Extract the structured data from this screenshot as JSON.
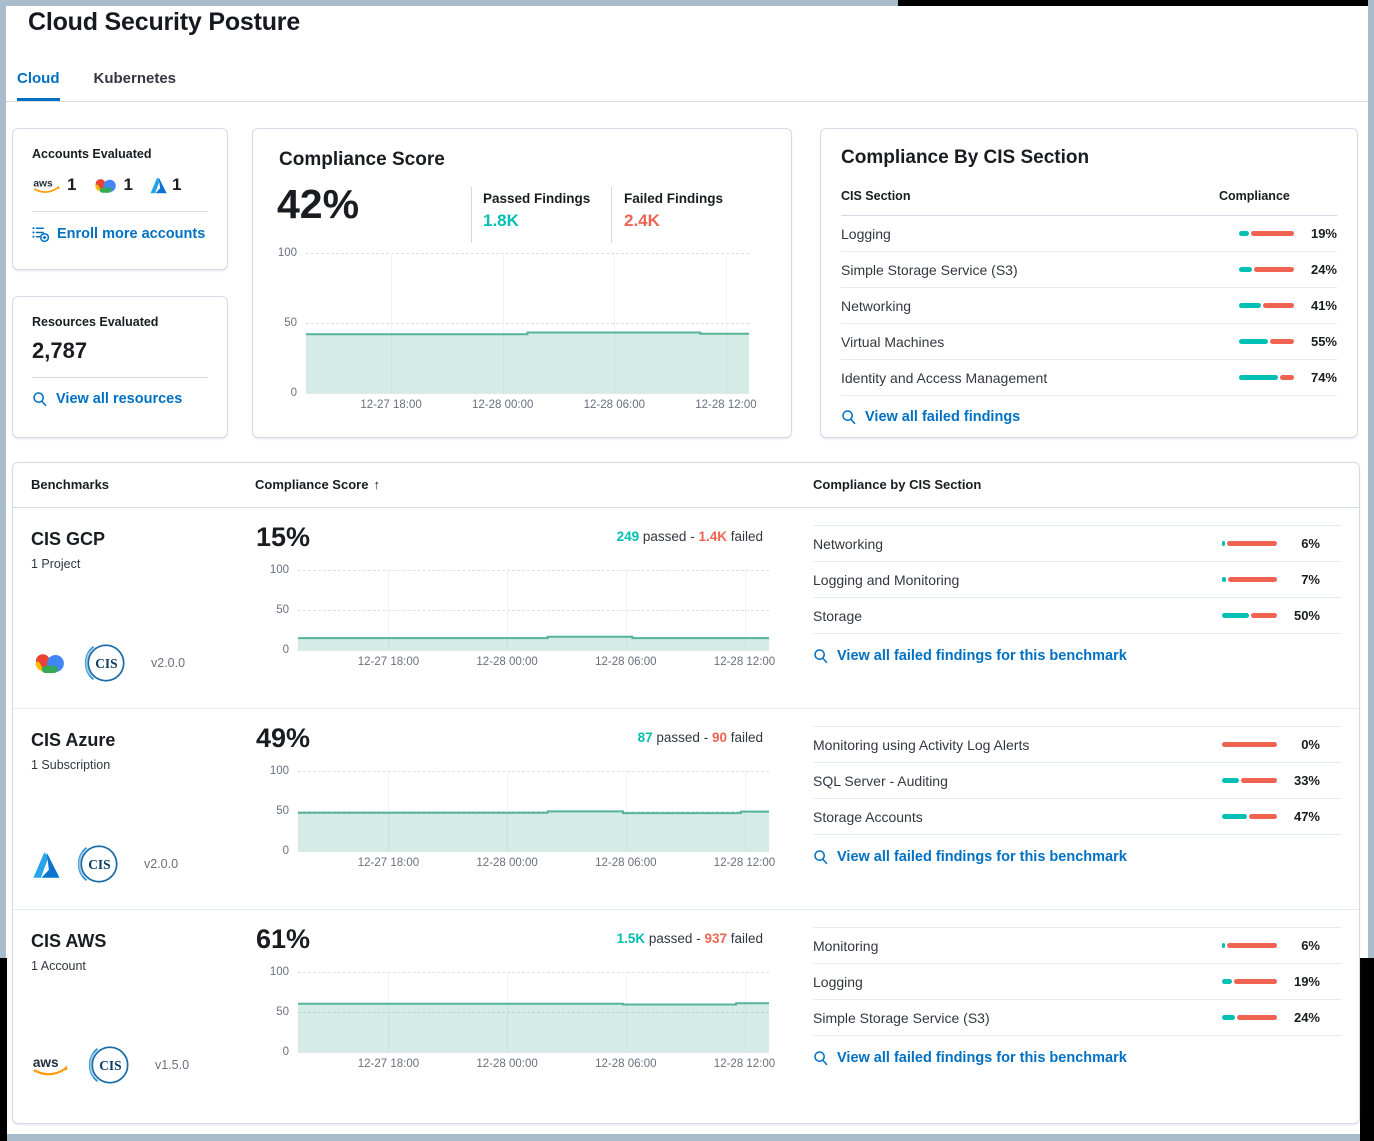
{
  "page": {
    "title": "Cloud Security Posture"
  },
  "tabs": [
    {
      "label": "Cloud",
      "active": true
    },
    {
      "label": "Kubernetes",
      "active": false
    }
  ],
  "accounts_card": {
    "title": "Accounts Evaluated",
    "providers": [
      {
        "icon": "aws",
        "count": "1"
      },
      {
        "icon": "gcp",
        "count": "1"
      },
      {
        "icon": "azure",
        "count": "1"
      }
    ],
    "link_label": "Enroll more accounts",
    "link_icon": "enroll"
  },
  "resources_card": {
    "title": "Resources Evaluated",
    "count": "2,787",
    "link_label": "View all resources",
    "link_icon": "search"
  },
  "score_card": {
    "title": "Compliance Score",
    "score": "42%",
    "passed_label": "Passed Findings",
    "passed_value": "1.8K",
    "failed_label": "Failed Findings",
    "failed_value": "2.4K"
  },
  "cis_card": {
    "title": "Compliance By CIS Section",
    "col_section": "CIS Section",
    "col_compliance": "Compliance",
    "rows": [
      {
        "name": "Logging",
        "pct": 19
      },
      {
        "name": "Simple Storage Service (S3)",
        "pct": 24
      },
      {
        "name": "Networking",
        "pct": 41
      },
      {
        "name": "Virtual Machines",
        "pct": 55
      },
      {
        "name": "Identity and Access Management",
        "pct": 74
      }
    ],
    "link_label": "View all failed findings",
    "link_icon": "search"
  },
  "benchmarks": {
    "col_benchmarks": "Benchmarks",
    "col_score": "Compliance Score",
    "sort_indicator": "↑",
    "col_sections": "Compliance by CIS Section",
    "passed_word": "passed",
    "failed_word": "failed",
    "separator": "-",
    "link_label": "View all failed findings for this benchmark",
    "link_icon": "search",
    "rows": [
      {
        "name": "CIS GCP",
        "subtitle": "1 Project",
        "provider_icon": "gcp",
        "cis_icon": "cis",
        "version": "v2.0.0",
        "score": "15%",
        "passed": "249",
        "failed": "1.4K",
        "sections": [
          {
            "name": "Networking",
            "pct": 6
          },
          {
            "name": "Logging and Monitoring",
            "pct": 7
          },
          {
            "name": "Storage",
            "pct": 50
          }
        ]
      },
      {
        "name": "CIS Azure",
        "subtitle": "1 Subscription",
        "provider_icon": "azure",
        "cis_icon": "cis",
        "version": "v2.0.0",
        "score": "49%",
        "passed": "87",
        "failed": "90",
        "sections": [
          {
            "name": "Monitoring using Activity Log Alerts",
            "pct": 0
          },
          {
            "name": "SQL Server - Auditing",
            "pct": 33
          },
          {
            "name": "Storage Accounts",
            "pct": 47
          }
        ]
      },
      {
        "name": "CIS AWS",
        "subtitle": "1 Account",
        "provider_icon": "aws",
        "cis_icon": "cis",
        "version": "v1.5.0",
        "score": "61%",
        "passed": "1.5K",
        "failed": "937",
        "sections": [
          {
            "name": "Monitoring",
            "pct": 6
          },
          {
            "name": "Logging",
            "pct": 19
          },
          {
            "name": "Simple Storage Service (S3)",
            "pct": 24
          }
        ]
      }
    ]
  },
  "chart_data": [
    {
      "type": "area",
      "name": "Overall compliance score trend",
      "ylim": [
        0,
        100
      ],
      "y_ticks": [
        100,
        50,
        0
      ],
      "x_ticks": [
        "12-27 18:00",
        "12-28 00:00",
        "12-28 06:00",
        "12-28 12:00"
      ],
      "x_tick_pcts": [
        19.2,
        44.4,
        69.6,
        94.8
      ],
      "points": [
        [
          0,
          42
        ],
        [
          50,
          42
        ],
        [
          50,
          43.2
        ],
        [
          89,
          43.2
        ],
        [
          89,
          42.3
        ],
        [
          100,
          42.3
        ]
      ]
    },
    {
      "type": "area",
      "name": "CIS GCP compliance score trend",
      "ylim": [
        0,
        100
      ],
      "y_ticks": [
        100,
        50,
        0
      ],
      "x_ticks": [
        "12-27 18:00",
        "12-28 00:00",
        "12-28 06:00",
        "12-28 12:00"
      ],
      "x_tick_pcts": [
        19.2,
        44.4,
        69.6,
        94.8
      ],
      "points": [
        [
          0,
          14.8
        ],
        [
          53,
          14.8
        ],
        [
          53,
          16.5
        ],
        [
          71,
          16.5
        ],
        [
          71,
          14.8
        ],
        [
          100,
          14.8
        ]
      ]
    },
    {
      "type": "area",
      "name": "CIS Azure compliance score trend",
      "ylim": [
        0,
        100
      ],
      "y_ticks": [
        100,
        50,
        0
      ],
      "x_ticks": [
        "12-27 18:00",
        "12-28 00:00",
        "12-28 06:00",
        "12-28 12:00"
      ],
      "x_tick_pcts": [
        19.2,
        44.4,
        69.6,
        94.8
      ],
      "points": [
        [
          0,
          47.8
        ],
        [
          53,
          47.8
        ],
        [
          53,
          49.6
        ],
        [
          69,
          49.6
        ],
        [
          69,
          47.3
        ],
        [
          94,
          47.3
        ],
        [
          94,
          49.2
        ],
        [
          100,
          49.2
        ]
      ]
    },
    {
      "type": "area",
      "name": "CIS AWS compliance score trend",
      "ylim": [
        0,
        100
      ],
      "y_ticks": [
        100,
        50,
        0
      ],
      "x_ticks": [
        "12-27 18:00",
        "12-28 00:00",
        "12-28 06:00",
        "12-28 12:00"
      ],
      "x_tick_pcts": [
        19.2,
        44.4,
        69.6,
        94.8
      ],
      "points": [
        [
          0,
          60.3
        ],
        [
          69,
          60.3
        ],
        [
          69,
          59.3
        ],
        [
          93,
          59.3
        ],
        [
          93,
          61
        ],
        [
          100,
          61
        ]
      ]
    }
  ],
  "colors": {
    "passed": "#00bfb3",
    "failed": "#ee6352",
    "link": "#0071c2",
    "active_tab": "#0071c2",
    "chart_line": "#54b399",
    "chart_fill": "rgba(84,179,153,0.25)"
  }
}
